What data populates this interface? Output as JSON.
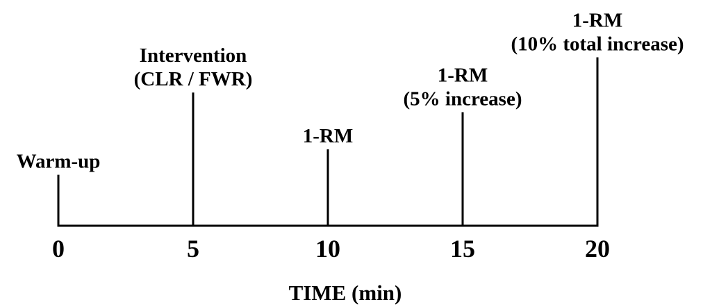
{
  "axis": {
    "title": "TIME (min)",
    "min": 0,
    "max": 20,
    "ticks": [
      "0",
      "5",
      "10",
      "15",
      "20"
    ]
  },
  "events": [
    {
      "time": 0,
      "lines": [
        "Warm-up"
      ],
      "marker_height": 0.26
    },
    {
      "time": 5,
      "lines": [
        "Intervention",
        "(CLR / FWR)"
      ],
      "marker_height": 0.68
    },
    {
      "time": 10,
      "lines": [
        "1-RM"
      ],
      "marker_height": 0.39
    },
    {
      "time": 15,
      "lines": [
        "1-RM",
        "(5% increase)"
      ],
      "marker_height": 0.58
    },
    {
      "time": 20,
      "lines": [
        "1-RM",
        "(10% total increase)"
      ],
      "marker_height": 0.86
    }
  ],
  "colors": {
    "line": "#000000",
    "text": "#000000",
    "background": "#ffffff"
  }
}
